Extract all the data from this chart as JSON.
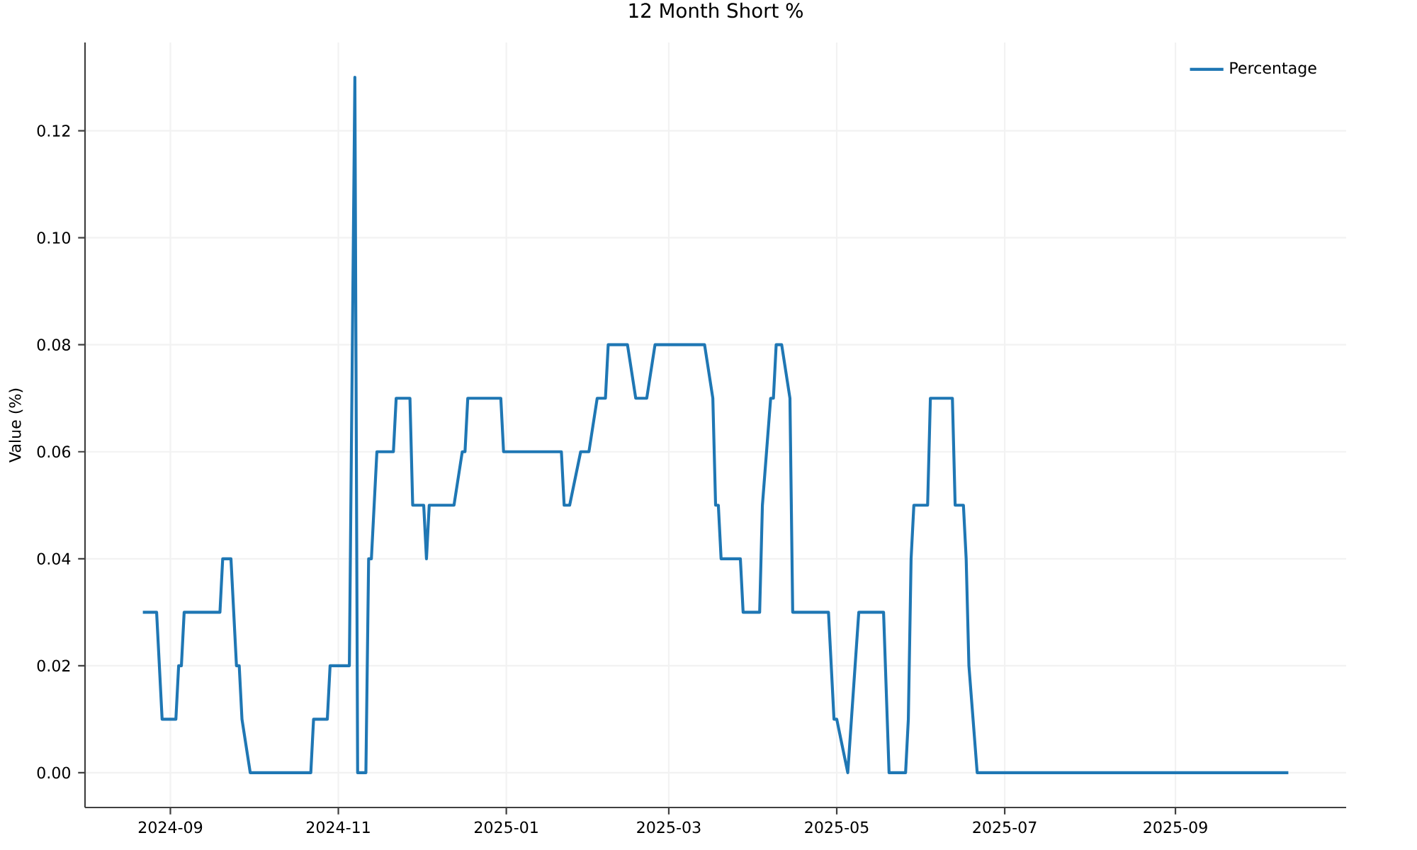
{
  "chart_data": {
    "type": "line",
    "title": "12 Month Short %",
    "ylabel": "Value (%)",
    "x": [
      "2024-08-22",
      "2024-08-27",
      "2024-08-29",
      "2024-09-03",
      "2024-09-04",
      "2024-09-05",
      "2024-09-06",
      "2024-09-19",
      "2024-09-20",
      "2024-09-23",
      "2024-09-25",
      "2024-09-26",
      "2024-09-27",
      "2024-09-30",
      "2024-10-22",
      "2024-10-23",
      "2024-10-28",
      "2024-10-29",
      "2024-11-05",
      "2024-11-07",
      "2024-11-08",
      "2024-11-11",
      "2024-11-12",
      "2024-11-13",
      "2024-11-15",
      "2024-11-21",
      "2024-11-22",
      "2024-11-27",
      "2024-11-28",
      "2024-12-02",
      "2024-12-03",
      "2024-12-04",
      "2024-12-13",
      "2024-12-16",
      "2024-12-17",
      "2024-12-18",
      "2024-12-30",
      "2024-12-31",
      "2025-01-21",
      "2025-01-22",
      "2025-01-24",
      "2025-01-28",
      "2025-01-31",
      "2025-02-03",
      "2025-02-06",
      "2025-02-07",
      "2025-02-14",
      "2025-02-17",
      "2025-02-21",
      "2025-02-24",
      "2025-03-14",
      "2025-03-17",
      "2025-03-18",
      "2025-03-19",
      "2025-03-20",
      "2025-03-27",
      "2025-03-28",
      "2025-04-03",
      "2025-04-04",
      "2025-04-07",
      "2025-04-08",
      "2025-04-09",
      "2025-04-11",
      "2025-04-14",
      "2025-04-15",
      "2025-04-28",
      "2025-04-30",
      "2025-05-01",
      "2025-05-05",
      "2025-05-09",
      "2025-05-18",
      "2025-05-20",
      "2025-05-26",
      "2025-05-27",
      "2025-05-28",
      "2025-05-29",
      "2025-06-03",
      "2025-06-04",
      "2025-06-12",
      "2025-06-13",
      "2025-06-16",
      "2025-06-17",
      "2025-06-18",
      "2025-06-21",
      "2025-10-12"
    ],
    "series": [
      {
        "name": "Percentage",
        "color": "#1f77b4",
        "values": [
          0.03,
          0.03,
          0.01,
          0.01,
          0.02,
          0.02,
          0.03,
          0.03,
          0.04,
          0.04,
          0.02,
          0.02,
          0.01,
          0,
          0,
          0.01,
          0.01,
          0.02,
          0.02,
          0.13,
          0,
          0,
          0.04,
          0.04,
          0.06,
          0.06,
          0.07,
          0.07,
          0.05,
          0.05,
          0.04,
          0.05,
          0.05,
          0.06,
          0.06,
          0.07,
          0.07,
          0.06,
          0.06,
          0.05,
          0.05,
          0.06,
          0.06,
          0.07,
          0.07,
          0.08,
          0.08,
          0.07,
          0.07,
          0.08,
          0.08,
          0.07,
          0.05,
          0.05,
          0.04,
          0.04,
          0.03,
          0.03,
          0.05,
          0.07,
          0.07,
          0.08,
          0.08,
          0.07,
          0.03,
          0.03,
          0.01,
          0.01,
          0,
          0.03,
          0.03,
          0,
          0,
          0.01,
          0.04,
          0.05,
          0.05,
          0.07,
          0.07,
          0.05,
          0.05,
          0.04,
          0.02,
          0,
          0
        ]
      }
    ],
    "xlim": [
      "2024-08-01",
      "2025-11-02"
    ],
    "ylim": [
      -0.0065,
      0.1365
    ],
    "xticks": [
      {
        "value": "2024-09-01",
        "label": "2024-09"
      },
      {
        "value": "2024-11-01",
        "label": "2024-11"
      },
      {
        "value": "2025-01-01",
        "label": "2025-01"
      },
      {
        "value": "2025-03-01",
        "label": "2025-03"
      },
      {
        "value": "2025-05-01",
        "label": "2025-05"
      },
      {
        "value": "2025-07-01",
        "label": "2025-07"
      },
      {
        "value": "2025-09-01",
        "label": "2025-09"
      }
    ],
    "yticks": [
      {
        "value": 0,
        "label": "0.00"
      },
      {
        "value": 0.02,
        "label": "0.02"
      },
      {
        "value": 0.04,
        "label": "0.04"
      },
      {
        "value": 0.06,
        "label": "0.06"
      },
      {
        "value": 0.08,
        "label": "0.08"
      },
      {
        "value": 0.1,
        "label": "0.10"
      },
      {
        "value": 0.12,
        "label": "0.12"
      }
    ],
    "grid": true,
    "legend": "top right"
  }
}
